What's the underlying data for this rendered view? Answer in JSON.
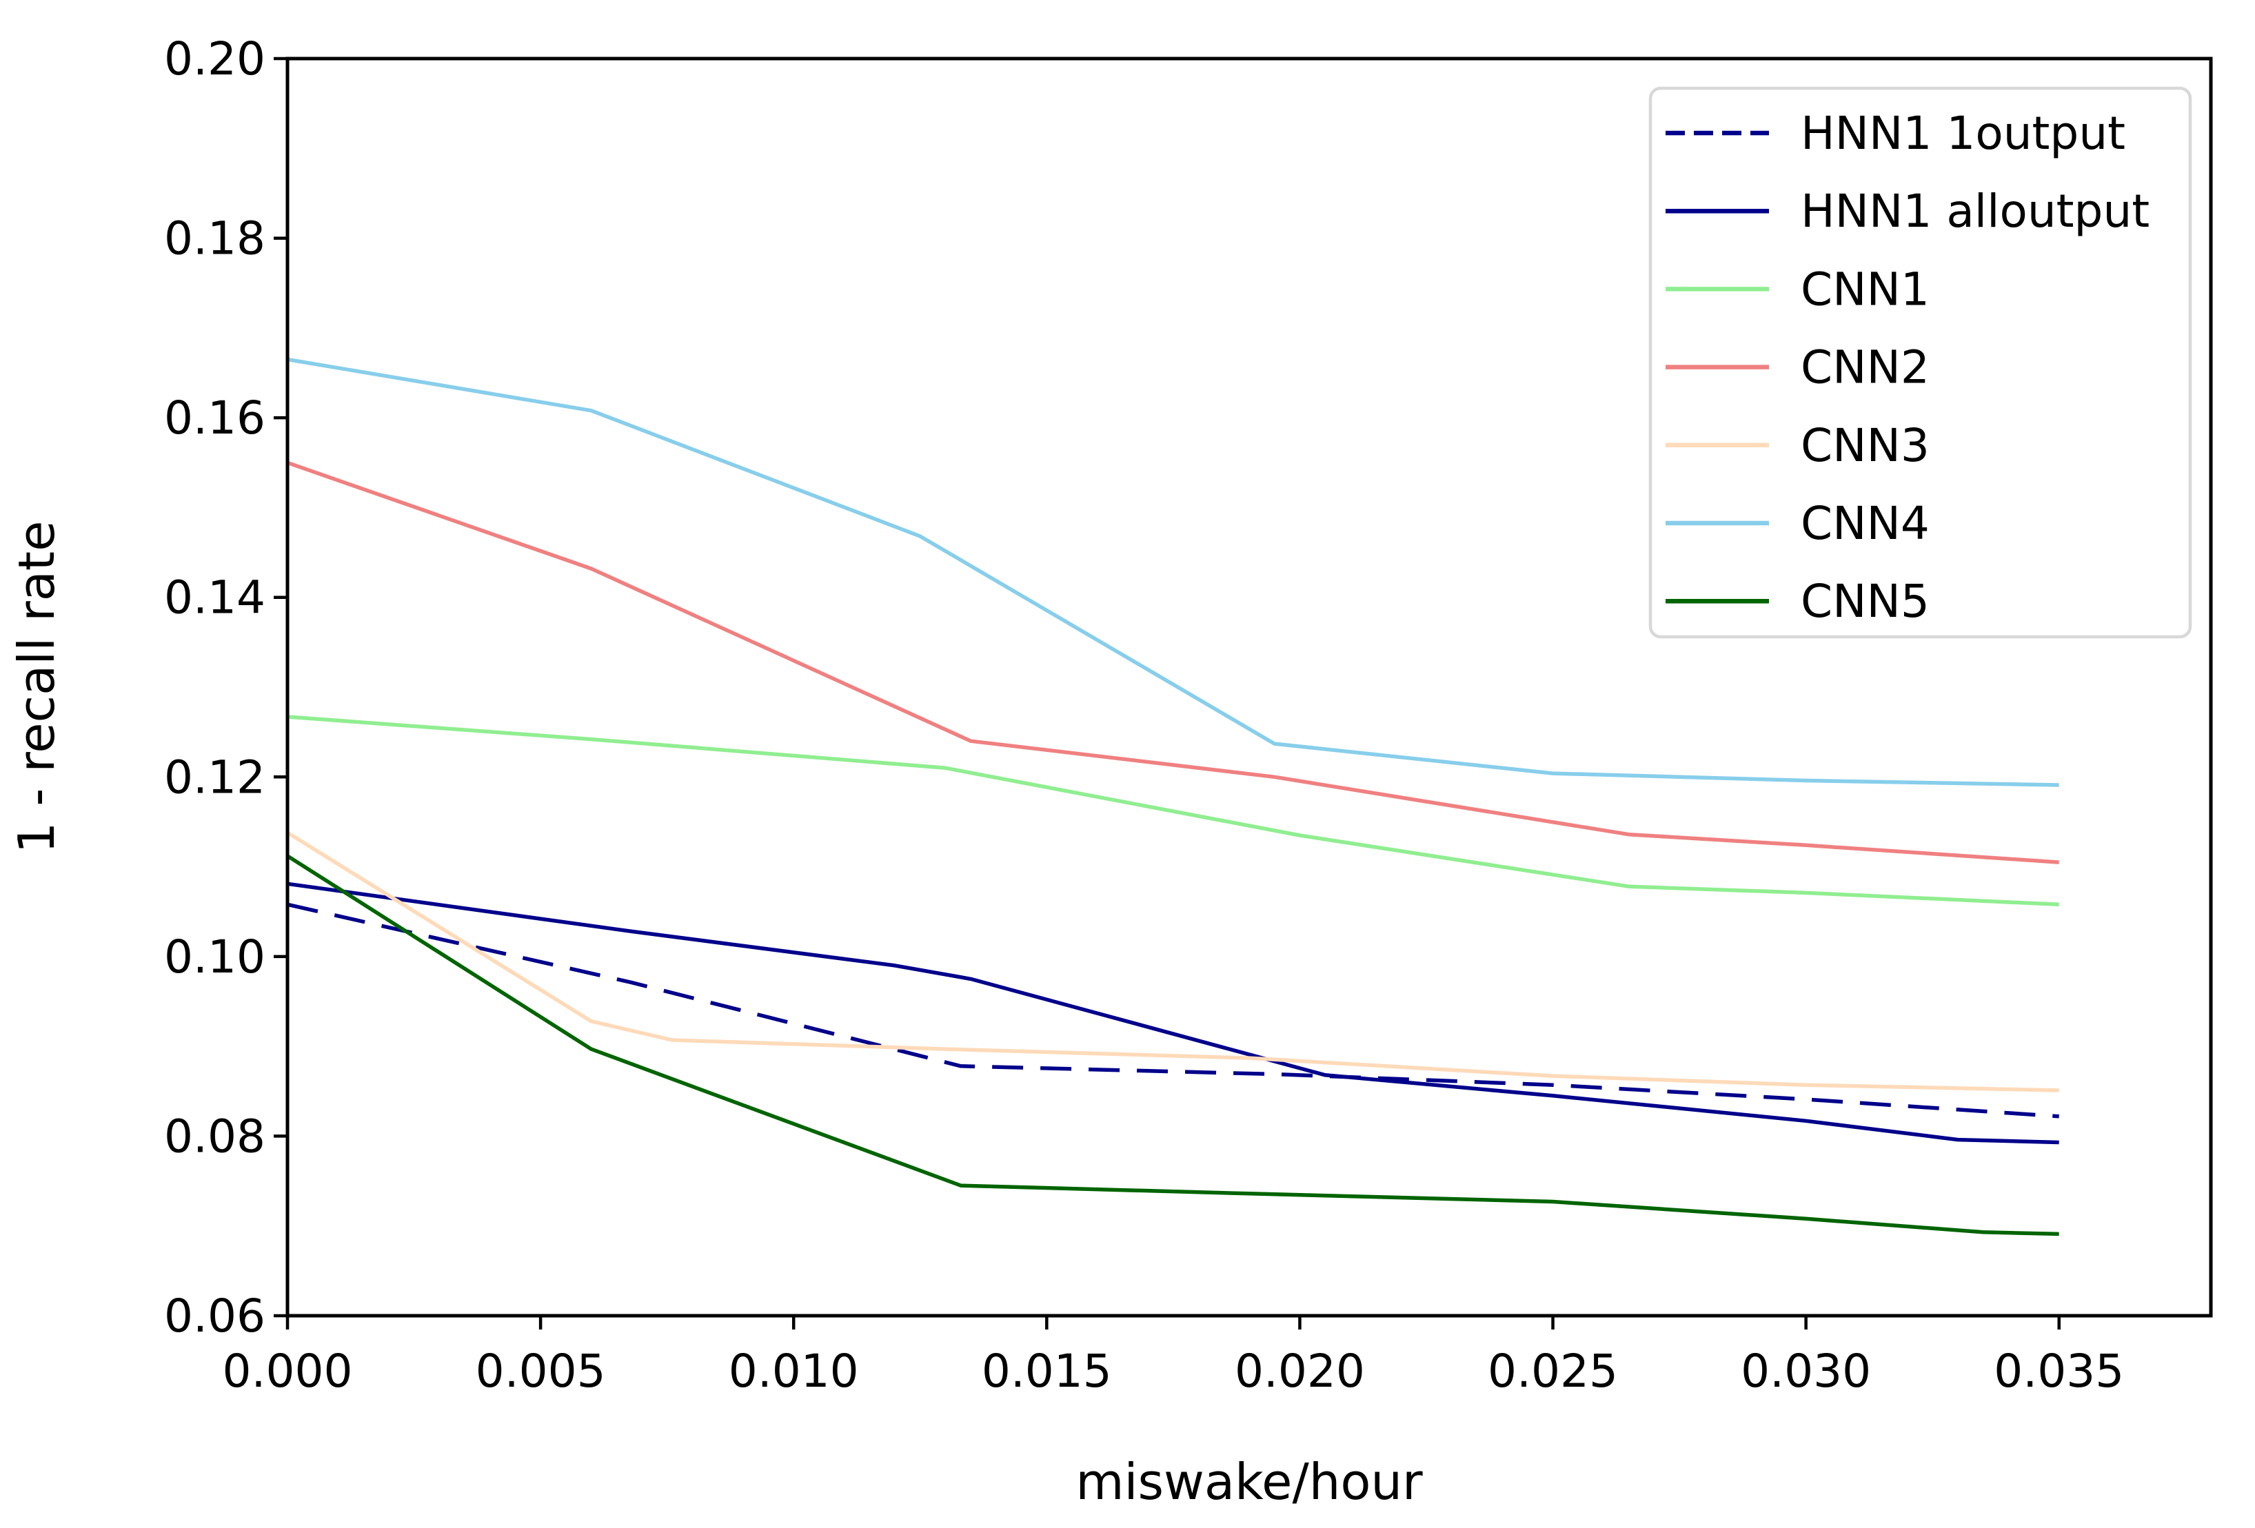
{
  "chart_data": {
    "type": "line",
    "title": "",
    "xlabel": "miswake/hour",
    "ylabel": "1 - recall rate",
    "xlim": [
      0.0,
      0.038
    ],
    "ylim": [
      0.06,
      0.2
    ],
    "grid": false,
    "legend_position": "upper right",
    "x_ticks": [
      0.0,
      0.005,
      0.01,
      0.015,
      0.02,
      0.025,
      0.03,
      0.035
    ],
    "x_tick_labels": [
      "0.000",
      "0.005",
      "0.010",
      "0.015",
      "0.020",
      "0.025",
      "0.030",
      "0.035"
    ],
    "y_ticks": [
      0.06,
      0.08,
      0.1,
      0.12,
      0.14,
      0.16,
      0.18,
      0.2
    ],
    "y_tick_labels": [
      "0.06",
      "0.08",
      "0.10",
      "0.12",
      "0.14",
      "0.16",
      "0.18",
      "0.20"
    ],
    "axis_color": "#000000",
    "legend_border_color": "#d8d8d8",
    "series": [
      {
        "name": "HNN1 1output",
        "color": "#00008b",
        "style": "dashed",
        "points": [
          [
            0.0,
            0.1058
          ],
          [
            0.0068,
            0.0971
          ],
          [
            0.0133,
            0.0878
          ],
          [
            0.0195,
            0.0869
          ],
          [
            0.025,
            0.0857
          ],
          [
            0.03,
            0.0841
          ],
          [
            0.035,
            0.0822
          ]
        ]
      },
      {
        "name": "HNN1 alloutput",
        "color": "#00008b",
        "style": "solid",
        "points": [
          [
            0.0,
            0.1081
          ],
          [
            0.0068,
            0.1028
          ],
          [
            0.012,
            0.099
          ],
          [
            0.0135,
            0.0975
          ],
          [
            0.0205,
            0.0868
          ],
          [
            0.025,
            0.0845
          ],
          [
            0.03,
            0.0817
          ],
          [
            0.033,
            0.0796
          ],
          [
            0.035,
            0.0793
          ]
        ]
      },
      {
        "name": "CNN1",
        "color": "#90ee90",
        "style": "solid",
        "points": [
          [
            0.0,
            0.1267
          ],
          [
            0.006,
            0.1242
          ],
          [
            0.013,
            0.121
          ],
          [
            0.02,
            0.1135
          ],
          [
            0.0265,
            0.1078
          ],
          [
            0.03,
            0.1071
          ],
          [
            0.035,
            0.1058
          ]
        ]
      },
      {
        "name": "CNN2",
        "color": "#f08080",
        "style": "solid",
        "points": [
          [
            0.0,
            0.155
          ],
          [
            0.006,
            0.1432
          ],
          [
            0.0135,
            0.124
          ],
          [
            0.0195,
            0.12
          ],
          [
            0.0265,
            0.1136
          ],
          [
            0.03,
            0.1124
          ],
          [
            0.035,
            0.1105
          ]
        ]
      },
      {
        "name": "CNN3",
        "color": "#ffdab9",
        "style": "solid",
        "points": [
          [
            0.0,
            0.1138
          ],
          [
            0.006,
            0.0928
          ],
          [
            0.0076,
            0.0907
          ],
          [
            0.013,
            0.0897
          ],
          [
            0.019,
            0.0887
          ],
          [
            0.025,
            0.0867
          ],
          [
            0.03,
            0.0857
          ],
          [
            0.035,
            0.0851
          ]
        ]
      },
      {
        "name": "CNN4",
        "color": "#87ceeb",
        "style": "solid",
        "points": [
          [
            0.0,
            0.1665
          ],
          [
            0.006,
            0.1608
          ],
          [
            0.0125,
            0.1468
          ],
          [
            0.0195,
            0.1237
          ],
          [
            0.025,
            0.1204
          ],
          [
            0.03,
            0.1196
          ],
          [
            0.035,
            0.1191
          ]
        ]
      },
      {
        "name": "CNN5",
        "color": "#006400",
        "style": "solid",
        "points": [
          [
            0.0,
            0.1112
          ],
          [
            0.006,
            0.0897
          ],
          [
            0.0133,
            0.0745
          ],
          [
            0.019,
            0.0736
          ],
          [
            0.025,
            0.0727
          ],
          [
            0.03,
            0.0708
          ],
          [
            0.0335,
            0.0693
          ],
          [
            0.035,
            0.0691
          ]
        ]
      }
    ]
  }
}
